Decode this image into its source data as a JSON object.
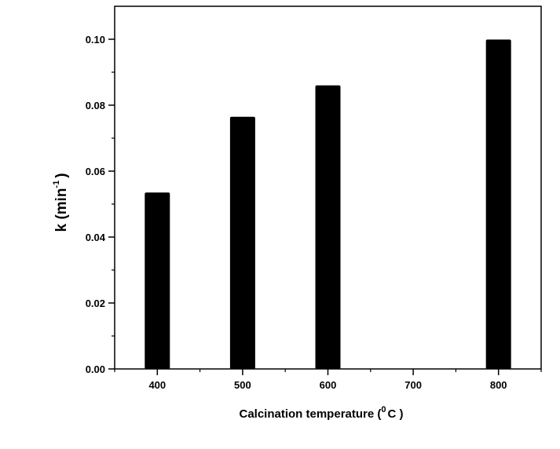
{
  "chart_data": {
    "type": "bar",
    "x_ticks": [
      400,
      500,
      600,
      700,
      800
    ],
    "bars": [
      {
        "x": 400,
        "value": 0.0535
      },
      {
        "x": 500,
        "value": 0.0765
      },
      {
        "x": 600,
        "value": 0.086
      },
      {
        "x": 800,
        "value": 0.0999
      }
    ],
    "xlim": [
      350,
      850
    ],
    "ylim": [
      0.0,
      0.11
    ],
    "y_ticks": [
      0.0,
      0.02,
      0.04,
      0.06,
      0.08,
      0.1
    ],
    "y_tick_labels": [
      "0.00",
      "0.02",
      "0.04",
      "0.06",
      "0.08",
      "0.10"
    ],
    "xlabel": {
      "main": "Calcination temperature (",
      "sup": "0",
      "tail": "C )"
    },
    "ylabel": {
      "main": "k (min",
      "sup": "-1",
      "tail": ")"
    },
    "bar_color": "#000000",
    "grid": false,
    "legend": "none"
  }
}
